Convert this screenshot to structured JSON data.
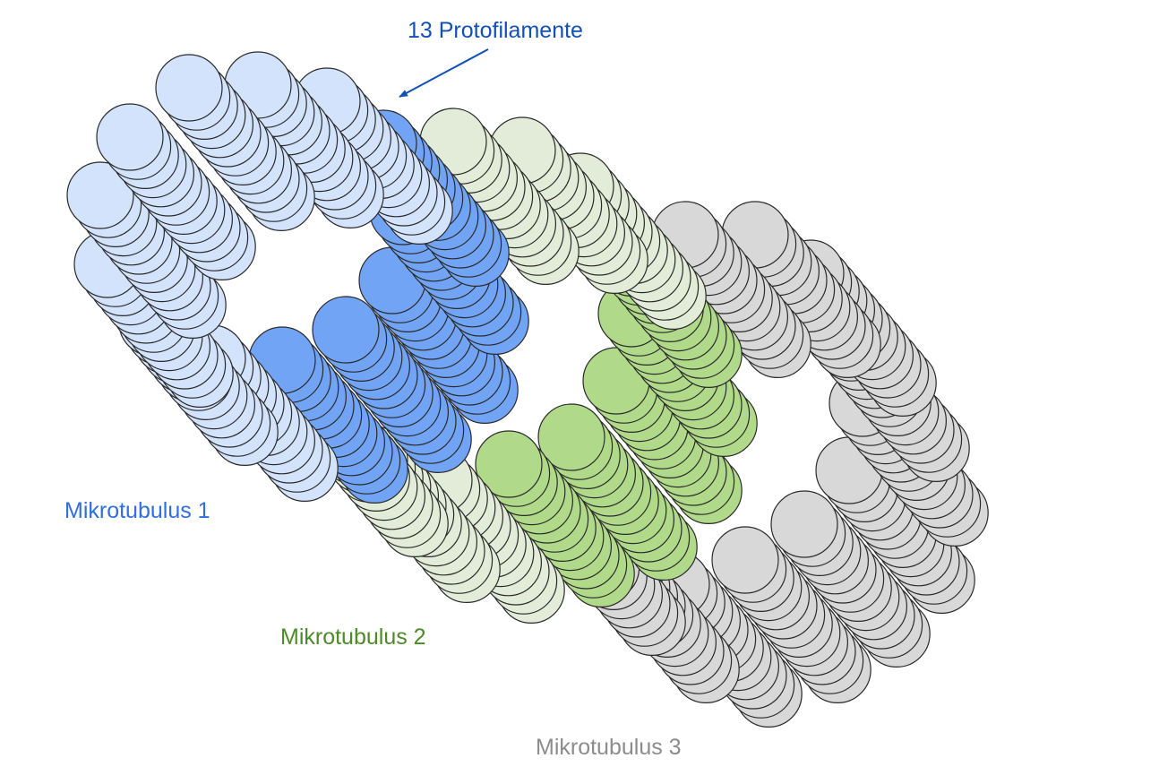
{
  "annotation": {
    "text": "13 Protofilamente",
    "color": "#1250b8"
  },
  "microtubules": [
    {
      "name": "Mikrotubulus 1",
      "label_color": "#2f6fe0",
      "light_fill": "#d3e3fb",
      "dark_fill": "#72a4f6"
    },
    {
      "name": "Mikrotubulus 2",
      "label_color": "#4e8a2a",
      "light_fill": "#e2ecd8",
      "dark_fill": "#b0da8a"
    },
    {
      "name": "Mikrotubulus 3",
      "label_color": "#8c8c8c",
      "light_fill": "#d8d8d8",
      "dark_fill": "#d8d8d8"
    }
  ],
  "protofilaments_per_microtubule": 13
}
